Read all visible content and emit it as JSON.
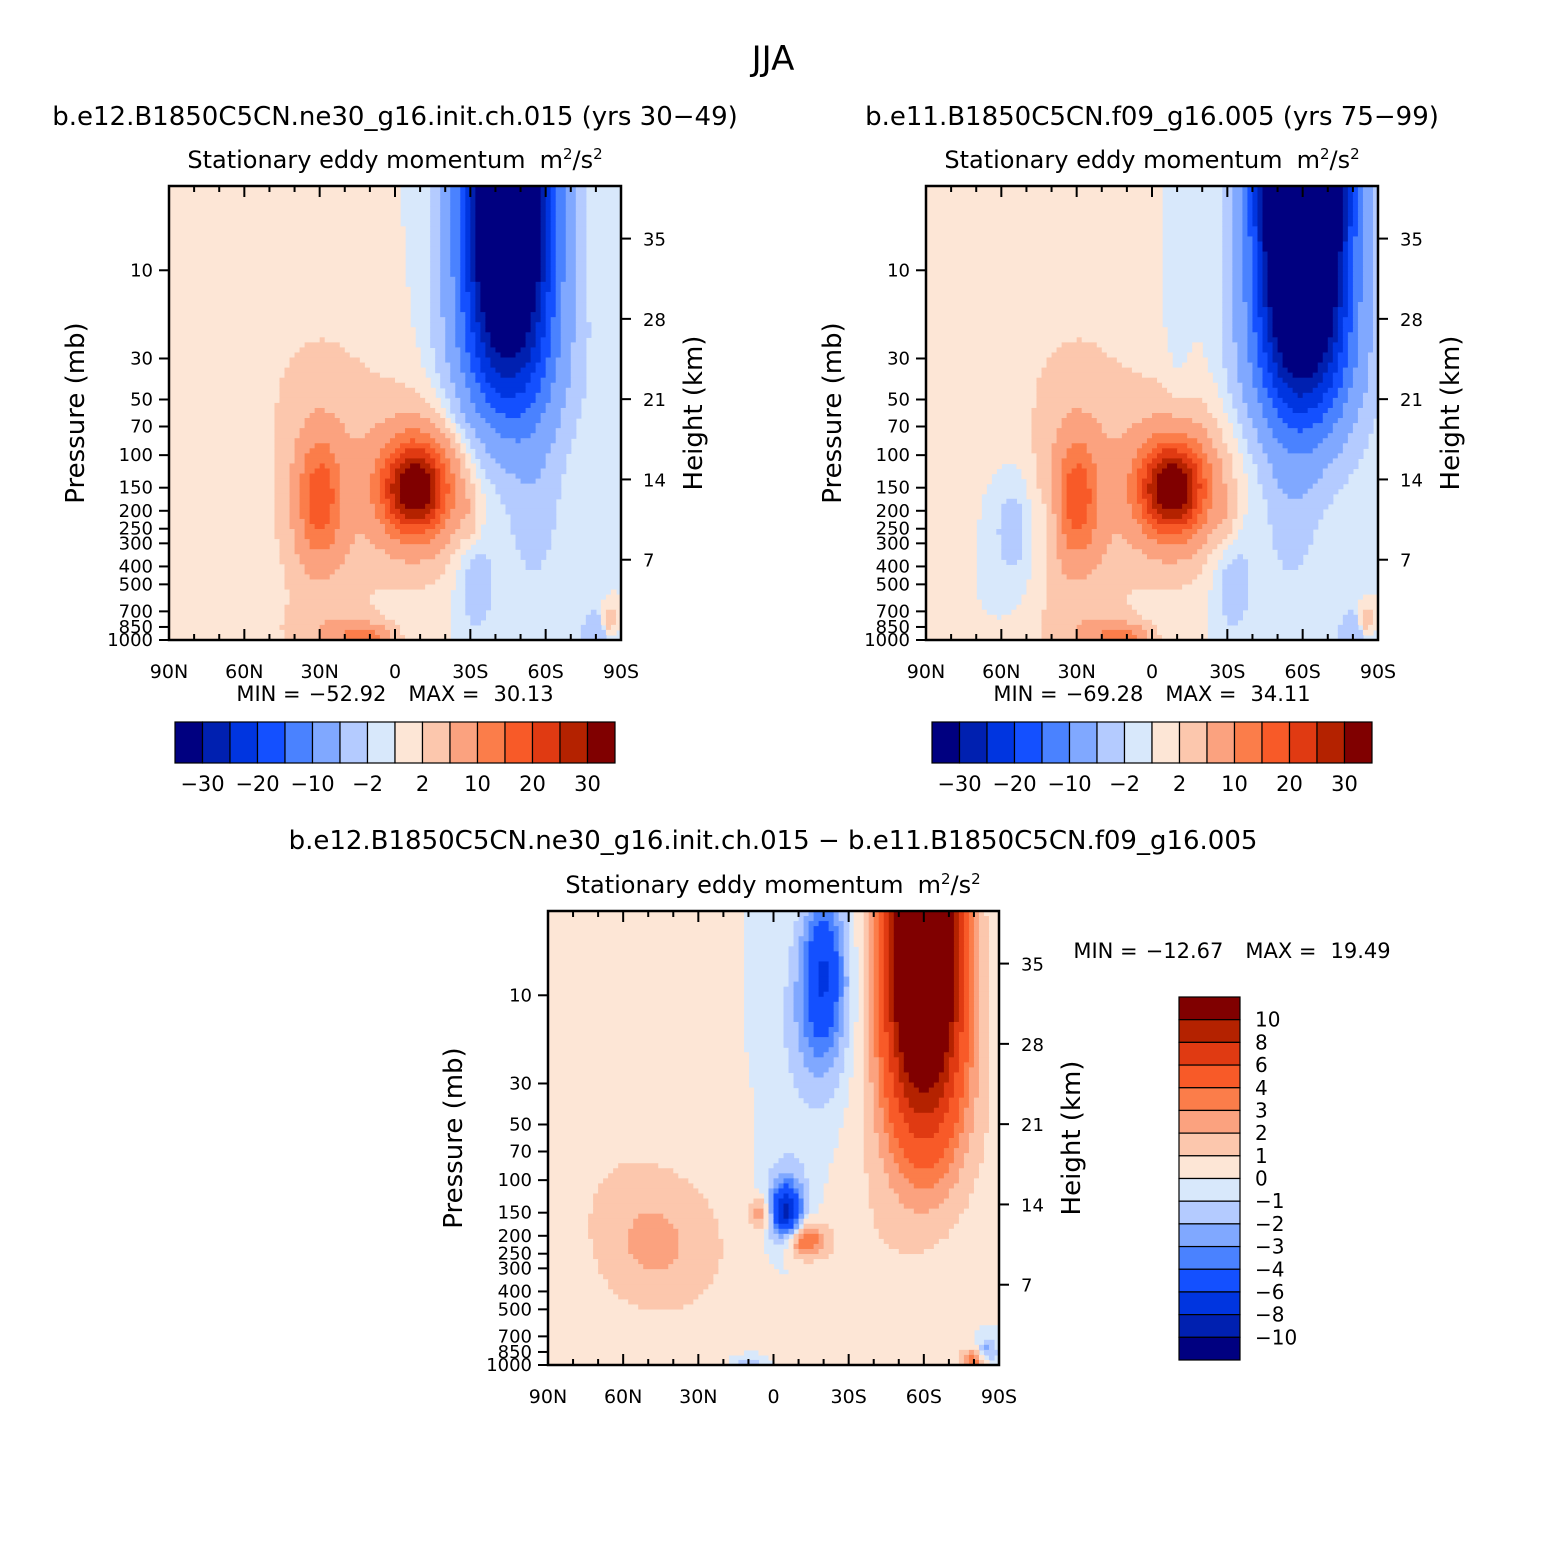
{
  "figure": {
    "title": "JJA"
  },
  "panels": [
    {
      "case_title": "b.e12.B1850C5CN.ne30_g16.init.ch.015 (yrs 30−49)",
      "variable": "Stationary eddy momentum",
      "units_base": "m",
      "units_mid": "/s",
      "units_exp": "2",
      "min_label": "MIN =",
      "min_value": "−52.92",
      "max_label": "MAX =",
      "max_value": "30.13",
      "ylabel_left": "Pressure (mb)",
      "ylabel_right": "Height (km)"
    },
    {
      "case_title": "b.e11.B1850C5CN.f09_g16.005 (yrs 75−99)",
      "variable": "Stationary eddy momentum",
      "units_base": "m",
      "units_mid": "/s",
      "units_exp": "2",
      "min_label": "MIN =",
      "min_value": "−69.28",
      "max_label": "MAX =",
      "max_value": "34.11",
      "ylabel_left": "Pressure (mb)",
      "ylabel_right": "Height (km)"
    },
    {
      "case_title": "b.e12.B1850C5CN.ne30_g16.init.ch.015 − b.e11.B1850C5CN.f09_g16.005",
      "variable": "Stationary eddy momentum",
      "units_base": "m",
      "units_mid": "/s",
      "units_exp": "2",
      "min_label": "MIN =",
      "min_value": "−12.67",
      "max_label": "MAX =",
      "max_value": "19.49",
      "ylabel_left": "Pressure (mb)",
      "ylabel_right": "Height (km)"
    }
  ],
  "colorbars": {
    "abs": {
      "colors": [
        "#000080",
        "#0020b0",
        "#0035e0",
        "#1450ff",
        "#4a82ff",
        "#80a8ff",
        "#b4cbff",
        "#d8e8fb",
        "#fde6d6",
        "#fcc7ad",
        "#fba27f",
        "#fb7d4a",
        "#f85a28",
        "#e03a12",
        "#b42200",
        "#800000"
      ],
      "labels": [
        "−30",
        "−20",
        "−10",
        "−2",
        "2",
        "10",
        "20",
        "30"
      ]
    },
    "diff": {
      "colors": [
        "#800000",
        "#b42200",
        "#e03a12",
        "#f85a28",
        "#fb7d4a",
        "#fba27f",
        "#fcc7ad",
        "#fde6d6",
        "#d8e8fb",
        "#b4cbff",
        "#80a8ff",
        "#4a82ff",
        "#1450ff",
        "#0035e0",
        "#0020b0",
        "#000080"
      ],
      "labels": [
        "10",
        "8",
        "6",
        "4",
        "3",
        "2",
        "1",
        "0",
        "−1",
        "−2",
        "−3",
        "−4",
        "−6",
        "−8",
        "−10"
      ]
    }
  },
  "chart_data": [
    {
      "type": "heatmap",
      "title": "b.e12.B1850C5CN.ne30_g16.init.ch.015 (yrs 30−49)",
      "subtitle": "Stationary eddy momentum m²/s²",
      "xlabel": "",
      "ylabel": "Pressure (mb)",
      "y2label": "Height (km)",
      "x_ticks": [
        "90N",
        "60N",
        "30N",
        "0",
        "30S",
        "60S",
        "90S"
      ],
      "x_range": [
        90,
        -90
      ],
      "y_ticks": [
        10,
        30,
        50,
        70,
        100,
        150,
        200,
        250,
        300,
        400,
        500,
        700,
        850,
        1000
      ],
      "y_range_mb": [
        1000,
        3.5
      ],
      "y_scale": "log",
      "y2_ticks": [
        7,
        14,
        21,
        28,
        35
      ],
      "levels": [
        -30,
        -25,
        -20,
        -15,
        -10,
        -5,
        -2,
        0,
        2,
        5,
        10,
        15,
        20,
        25,
        30
      ],
      "colorbar_labels": [
        "−30",
        "−20",
        "−10",
        "−2",
        "2",
        "10",
        "20",
        "30"
      ],
      "min": -52.92,
      "max": 30.13,
      "features": [
        {
          "lat": -45,
          "p_mb": 5,
          "value": -52.92
        },
        {
          "lat": -8,
          "p_mb": 150,
          "value": 30.13
        },
        {
          "lat": 30,
          "p_mb": 170,
          "value": 14
        },
        {
          "lat": 12,
          "p_mb": 980,
          "value": 12
        }
      ]
    },
    {
      "type": "heatmap",
      "title": "b.e11.B1850C5CN.f09_g16.005 (yrs 75−99)",
      "subtitle": "Stationary eddy momentum m²/s²",
      "xlabel": "",
      "ylabel": "Pressure (mb)",
      "y2label": "Height (km)",
      "x_ticks": [
        "90N",
        "60N",
        "30N",
        "0",
        "30S",
        "60S",
        "90S"
      ],
      "x_range": [
        90,
        -90
      ],
      "y_ticks": [
        10,
        30,
        50,
        70,
        100,
        150,
        200,
        250,
        300,
        400,
        500,
        700,
        850,
        1000
      ],
      "y_range_mb": [
        1000,
        3.5
      ],
      "y_scale": "log",
      "y2_ticks": [
        7,
        14,
        21,
        28,
        35
      ],
      "levels": [
        -30,
        -25,
        -20,
        -15,
        -10,
        -5,
        -2,
        0,
        2,
        5,
        10,
        15,
        20,
        25,
        30
      ],
      "colorbar_labels": [
        "−30",
        "−20",
        "−10",
        "−2",
        "2",
        "10",
        "20",
        "30"
      ],
      "min": -69.28,
      "max": 34.11,
      "features": [
        {
          "lat": -60,
          "p_mb": 5,
          "value": -69.28
        },
        {
          "lat": -8,
          "p_mb": 150,
          "value": 34.11
        },
        {
          "lat": 30,
          "p_mb": 170,
          "value": 14
        },
        {
          "lat": 12,
          "p_mb": 980,
          "value": 12
        }
      ]
    },
    {
      "type": "heatmap",
      "title": "b.e12.B1850C5CN.ne30_g16.init.ch.015 − b.e11.B1850C5CN.f09_g16.005",
      "subtitle": "Stationary eddy momentum m²/s²",
      "xlabel": "",
      "ylabel": "Pressure (mb)",
      "y2label": "Height (km)",
      "x_ticks": [
        "90N",
        "60N",
        "30N",
        "0",
        "30S",
        "60S",
        "90S"
      ],
      "x_range": [
        90,
        -90
      ],
      "y_ticks": [
        10,
        30,
        50,
        70,
        100,
        150,
        200,
        250,
        300,
        400,
        500,
        700,
        850,
        1000
      ],
      "y_range_mb": [
        1000,
        3.5
      ],
      "y_scale": "log",
      "y2_ticks": [
        7,
        14,
        21,
        28,
        35
      ],
      "levels": [
        -10,
        -8,
        -6,
        -4,
        -3,
        -2,
        -1,
        0,
        1,
        2,
        3,
        4,
        6,
        8,
        10
      ],
      "colorbar_labels": [
        "10",
        "8",
        "6",
        "4",
        "3",
        "2",
        "1",
        "0",
        "−1",
        "−2",
        "−3",
        "−4",
        "−6",
        "−8",
        "−10"
      ],
      "min": -12.67,
      "max": 19.49,
      "features": [
        {
          "lat": -60,
          "p_mb": 5,
          "value": 19.49
        },
        {
          "lat": -20,
          "p_mb": 8,
          "value": -5
        },
        {
          "lat": -5,
          "p_mb": 150,
          "value": -7
        },
        {
          "lat": -12,
          "p_mb": 210,
          "value": 4
        }
      ]
    }
  ]
}
